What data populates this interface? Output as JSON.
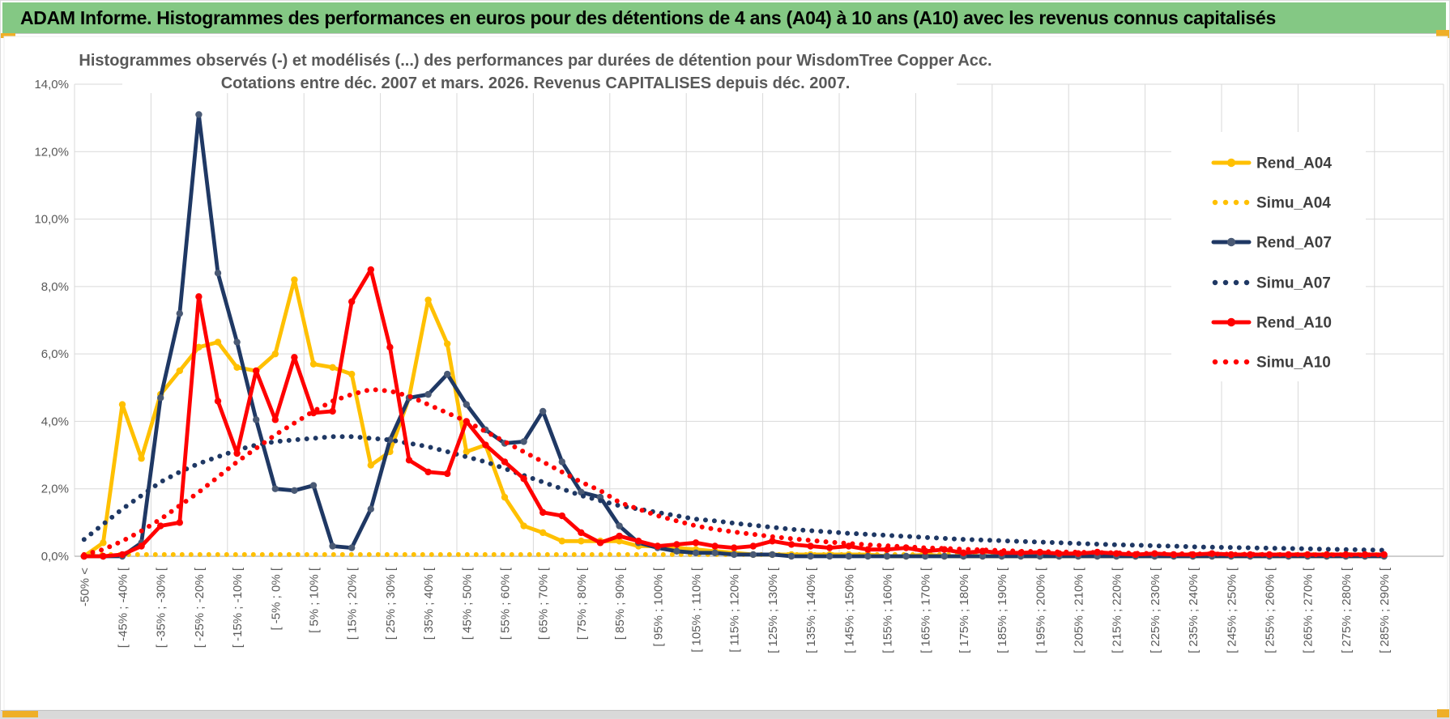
{
  "header": {
    "title": "ADAM Informe. Histogrammes des performances en euros pour des détentions de 4 ans (A04) à 10 ans (A10) avec les revenus connus capitalisés"
  },
  "colors": {
    "header_green": "#84C884",
    "accent_gold": "#EFAF27",
    "gold": "#FFC000",
    "navy": "#1F3864",
    "navy_marker": "#4A5A75",
    "red": "#FF0000",
    "grid": "#D9D9D9",
    "axis_line": "#BFBFBF",
    "axis_text": "#595959",
    "title_text": "#595959",
    "legend_text": "#3F3F3F"
  },
  "chart_data": {
    "type": "line",
    "title": "Histogrammes observés (-) et modélisés (...) des performances par durées de détention pour WisdomTree Copper Acc.",
    "subtitle": "Cotations entre déc. 2007 et mars. 2026. Revenus CAPITALISES depuis déc. 2007.",
    "ylabel": "",
    "xlabel": "",
    "ylim": [
      0,
      14
    ],
    "grid": true,
    "legend_position": "right",
    "y_tick_labels": [
      "0,0%",
      "2,0%",
      "4,0%",
      "6,0%",
      "8,0%",
      "10,0%",
      "12,0%",
      "14,0%"
    ],
    "note": "Histogram bins are 5% wide; axis labels are shown on every other bin (69 bins total, 35 labels). Values in % frequency.",
    "x_labels": [
      "-50% <",
      "[ -45% ; -40% [",
      "[ -35% ; -30% [",
      "[ -25% ; -20% [",
      "[ -15% ; -10% [",
      "[ -5% ; 0% [",
      "[ 5% ; 10% [",
      "[ 15% ; 20% [",
      "[ 25% ; 30% [",
      "[ 35% ; 40% [",
      "[ 45% ; 50% [",
      "[ 55% ; 60% [",
      "[ 65% ; 70% [",
      "[ 75% ; 80% [",
      "[ 85% ; 90% [",
      "[ 95% ; 100% [",
      "[ 105% ; 110% [",
      "[ 115% ; 120% [",
      "[ 125% ; 130% [",
      "[ 135% ; 140% [",
      "[ 145% ; 150% [",
      "[ 155% ; 160% [",
      "[ 165% ; 170% [",
      "[ 175% ; 180% [",
      "[ 185% ; 190% [",
      "[ 195% ; 200% [",
      "[ 205% ; 210% [",
      "[ 215% ; 220% [",
      "[ 225% ; 230% [",
      "[ 235% ; 240% [",
      "[ 245% ; 250% [",
      "[ 255% ; 260% [",
      "[ 265% ; 270% [",
      "[ 275% ; 280% [",
      "[ 285% ; 290% ["
    ],
    "series": [
      {
        "name": "Rend_A04",
        "style": "solid",
        "color": "#FFC000",
        "marker_color": "#FFC000",
        "values": [
          0,
          0.4,
          4.5,
          2.9,
          4.8,
          5.5,
          6.2,
          6.35,
          5.6,
          5.5,
          6.0,
          8.2,
          5.7,
          5.6,
          5.4,
          2.7,
          3.1,
          4.7,
          7.6,
          6.3,
          3.1,
          3.3,
          1.75,
          0.9,
          0.7,
          0.45,
          0.45,
          0.45,
          0.45,
          0.3,
          0.3,
          0.25,
          0.2,
          0.15,
          0.1,
          0.05,
          0.05,
          0.05,
          0.05,
          0.05,
          0.05,
          0.05,
          0,
          0,
          0.05,
          0,
          0,
          0,
          0,
          0,
          0,
          0,
          0,
          0,
          0,
          0,
          0,
          0,
          0,
          0,
          0,
          0,
          0,
          0,
          0,
          0,
          0,
          0,
          0
        ]
      },
      {
        "name": "Simu_A04",
        "style": "dotted",
        "color": "#FFC000",
        "marker_color": "#FFC000",
        "values": [
          0.05,
          0.05,
          0.05,
          0.05,
          0.05,
          0.05,
          0.05,
          0.05,
          0.05,
          0.05,
          0.05,
          0.05,
          0.05,
          0.05,
          0.05,
          0.05,
          0.05,
          0.05,
          0.05,
          0.05,
          0.05,
          0.05,
          0.05,
          0.05,
          0.05,
          0.05,
          0.05,
          0.05,
          0.05,
          0.05,
          0.05,
          0.05,
          0.05,
          0.05,
          0.05,
          0.05,
          0.05,
          0.05,
          0.05,
          0.05,
          0.05,
          0.05,
          0.05,
          0.05,
          0.05,
          0.05,
          0.05,
          0.05,
          0.05,
          0.05,
          0.05,
          0.05,
          0.05,
          0.05,
          0.05,
          0.05,
          0.05,
          0.05,
          0.05,
          0.05,
          0.05,
          0.05,
          0.05,
          0.05,
          0.05,
          0.05,
          0.05,
          0.05,
          0.05
        ]
      },
      {
        "name": "Rend_A07",
        "style": "solid",
        "color": "#1F3864",
        "marker_color": "#4A5A75",
        "values": [
          0,
          0,
          0,
          0.4,
          4.7,
          7.2,
          13.1,
          8.4,
          6.35,
          4.05,
          2.0,
          1.95,
          2.1,
          0.3,
          0.25,
          1.4,
          3.45,
          4.7,
          4.8,
          5.4,
          4.5,
          3.75,
          3.35,
          3.4,
          4.3,
          2.8,
          1.9,
          1.75,
          0.9,
          0.4,
          0.25,
          0.15,
          0.1,
          0.1,
          0.05,
          0.05,
          0.05,
          0,
          0,
          0,
          0,
          0,
          0,
          0,
          0,
          0,
          0,
          0,
          0,
          0,
          0,
          0,
          0,
          0,
          0,
          0,
          0,
          0,
          0,
          0,
          0,
          0,
          0,
          0,
          0,
          0,
          0,
          0,
          0
        ]
      },
      {
        "name": "Simu_A07",
        "style": "dotted",
        "color": "#1F3864",
        "marker_color": "#1F3864",
        "values": [
          0.5,
          0.95,
          1.4,
          1.8,
          2.2,
          2.5,
          2.75,
          2.95,
          3.15,
          3.3,
          3.4,
          3.45,
          3.5,
          3.55,
          3.55,
          3.5,
          3.45,
          3.35,
          3.25,
          3.1,
          2.95,
          2.8,
          2.6,
          2.4,
          2.2,
          2.0,
          1.8,
          1.65,
          1.5,
          1.4,
          1.3,
          1.2,
          1.1,
          1.05,
          0.98,
          0.92,
          0.86,
          0.8,
          0.76,
          0.72,
          0.68,
          0.65,
          0.62,
          0.59,
          0.56,
          0.53,
          0.5,
          0.48,
          0.46,
          0.44,
          0.42,
          0.4,
          0.38,
          0.36,
          0.34,
          0.33,
          0.31,
          0.3,
          0.28,
          0.27,
          0.26,
          0.25,
          0.24,
          0.23,
          0.22,
          0.21,
          0.2,
          0.19,
          0.18
        ]
      },
      {
        "name": "Rend_A10",
        "style": "solid",
        "color": "#FF0000",
        "marker_color": "#FF0000",
        "values": [
          0,
          0,
          0.05,
          0.3,
          0.9,
          1.0,
          7.7,
          4.6,
          3.05,
          5.5,
          4.05,
          5.9,
          4.25,
          4.3,
          7.55,
          8.5,
          6.2,
          2.85,
          2.5,
          2.45,
          4.0,
          3.3,
          2.8,
          2.3,
          1.3,
          1.2,
          0.7,
          0.4,
          0.6,
          0.45,
          0.3,
          0.35,
          0.4,
          0.3,
          0.25,
          0.3,
          0.45,
          0.35,
          0.3,
          0.25,
          0.3,
          0.2,
          0.2,
          0.25,
          0.15,
          0.2,
          0.1,
          0.15,
          0.1,
          0.1,
          0.12,
          0.08,
          0.08,
          0.12,
          0.08,
          0.05,
          0.08,
          0.05,
          0.05,
          0.08,
          0.05,
          0.05,
          0.05,
          0.05,
          0.05,
          0.05,
          0.05,
          0.05,
          0.05
        ]
      },
      {
        "name": "Simu_A10",
        "style": "dotted",
        "color": "#FF0000",
        "marker_color": "#FF0000",
        "values": [
          0.05,
          0.2,
          0.45,
          0.75,
          1.1,
          1.5,
          1.9,
          2.35,
          2.8,
          3.2,
          3.6,
          3.95,
          4.3,
          4.6,
          4.8,
          4.95,
          4.9,
          4.75,
          4.5,
          4.25,
          4.0,
          3.7,
          3.4,
          3.1,
          2.8,
          2.5,
          2.2,
          1.95,
          1.6,
          1.4,
          1.2,
          1.05,
          0.9,
          0.8,
          0.72,
          0.65,
          0.58,
          0.52,
          0.47,
          0.42,
          0.38,
          0.34,
          0.31,
          0.28,
          0.25,
          0.23,
          0.21,
          0.19,
          0.17,
          0.15,
          0.14,
          0.13,
          0.12,
          0.11,
          0.1,
          0.09,
          0.08,
          0.08,
          0.07,
          0.07,
          0.06,
          0.06,
          0.05,
          0.05,
          0.05,
          0.04,
          0.04,
          0.04,
          0.04
        ]
      }
    ]
  }
}
